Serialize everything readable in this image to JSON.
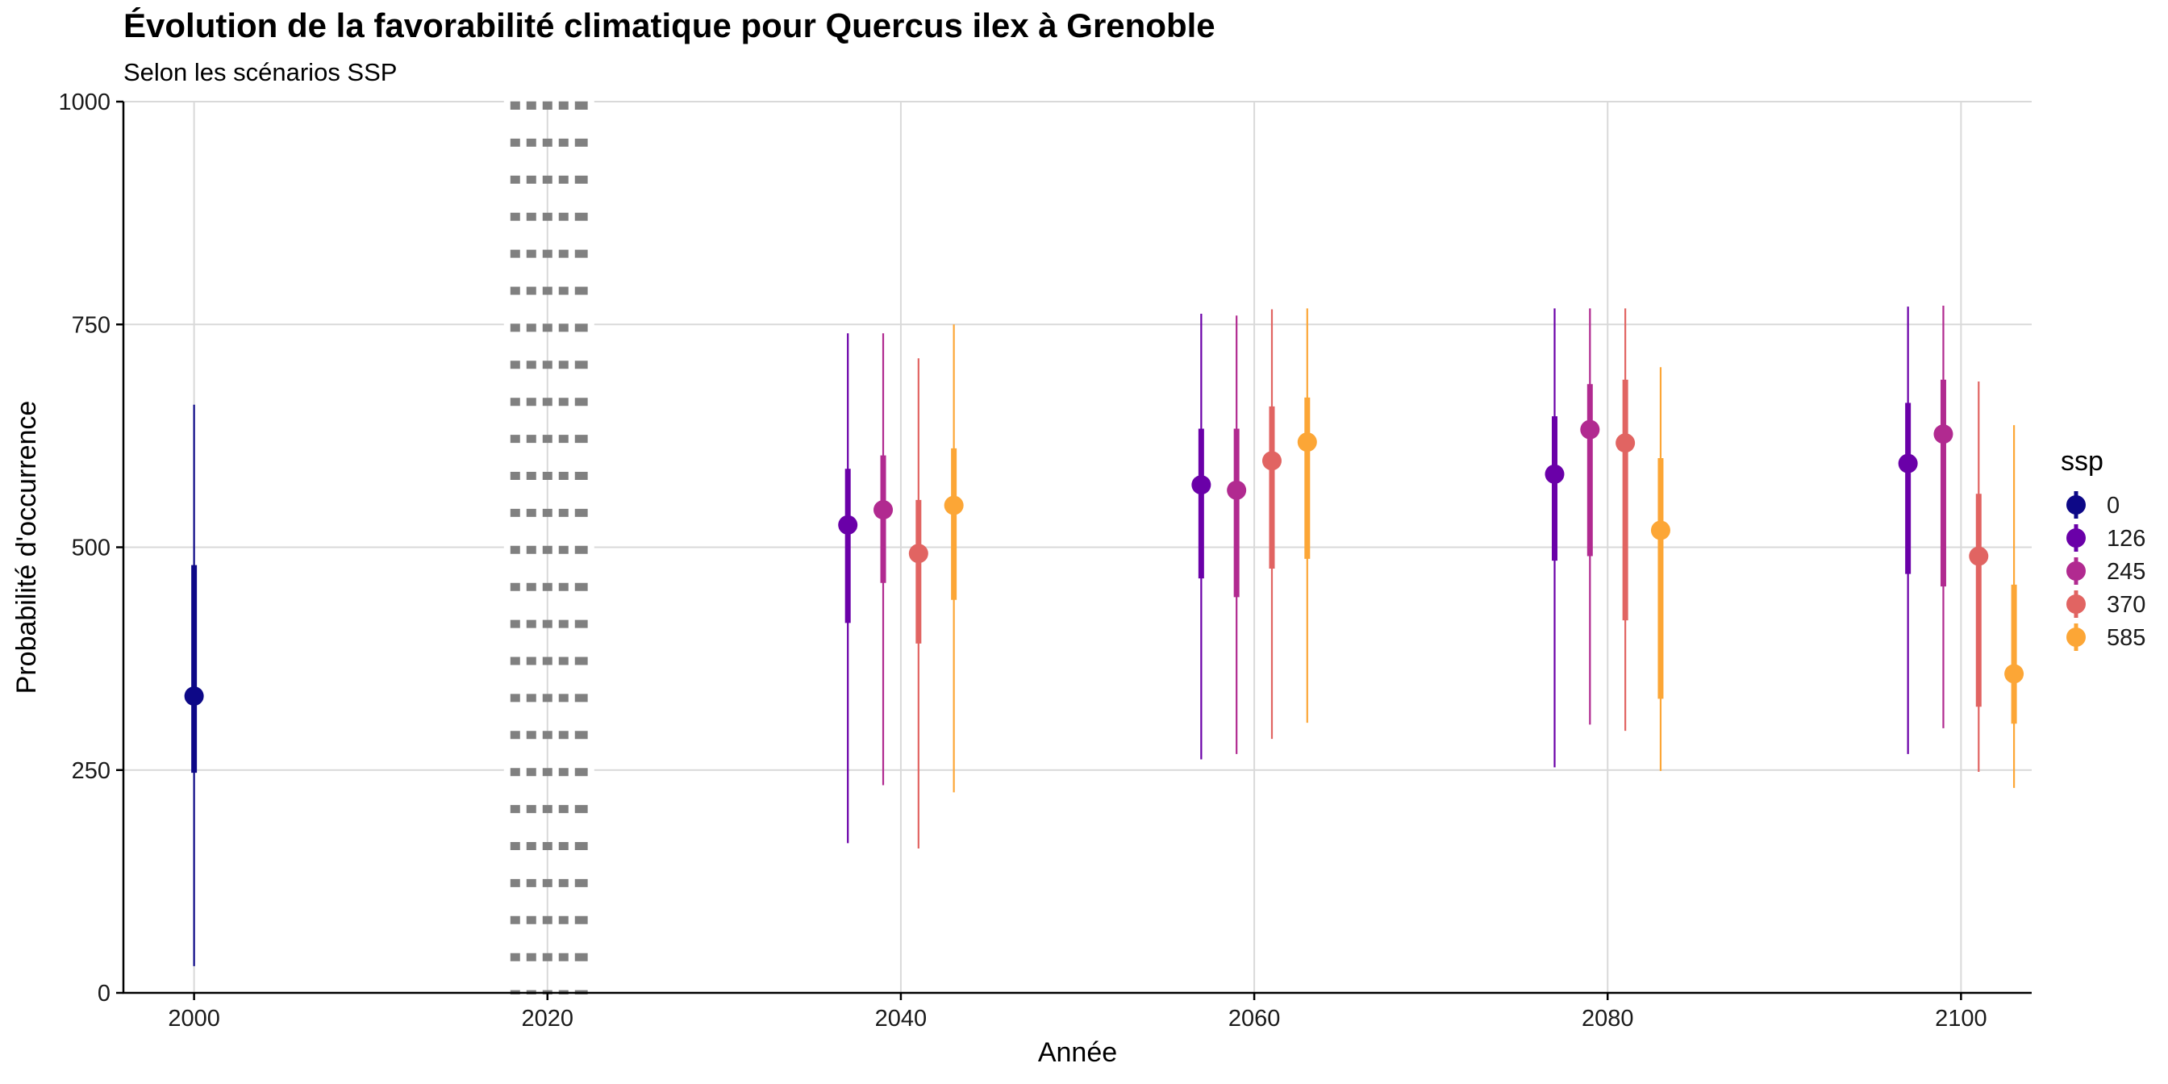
{
  "chart_data": {
    "type": "pointrange",
    "title": "Évolution de la favorabilité climatique pour Quercus ilex à Grenoble",
    "subtitle": "Selon les scénarios SSP",
    "xlabel": "Année",
    "ylabel": "Probabilité d'occurrence",
    "xlim": [
      1996,
      2104
    ],
    "ylim": [
      0,
      1000
    ],
    "x_ticks": [
      "2000",
      "2020",
      "2040",
      "2060",
      "2080",
      "2100"
    ],
    "y_ticks": [
      "0",
      "250",
      "500",
      "750",
      "1000"
    ],
    "grid": true,
    "reference_line": {
      "x": 2020,
      "style": "dotted",
      "color": "#808080"
    },
    "legend": {
      "title": "ssp",
      "placement": "right",
      "entries": [
        {
          "label": "0",
          "color": "#0d0887"
        },
        {
          "label": "126",
          "color": "#6a00a8"
        },
        {
          "label": "245",
          "color": "#b12a90"
        },
        {
          "label": "370",
          "color": "#e16462"
        },
        {
          "label": "585",
          "color": "#fca636"
        }
      ]
    },
    "series": [
      {
        "name": "0",
        "color": "#0d0887",
        "points": [
          {
            "x": 2000,
            "y": 333,
            "inner": [
              247,
              480
            ],
            "outer": [
              30,
              660
            ]
          }
        ]
      },
      {
        "name": "126",
        "color": "#6a00a8",
        "points": [
          {
            "x": 2037,
            "y": 525,
            "inner": [
              415,
              588
            ],
            "outer": [
              168,
              740
            ]
          },
          {
            "x": 2057,
            "y": 570,
            "inner": [
              465,
              633
            ],
            "outer": [
              262,
              762
            ]
          },
          {
            "x": 2077,
            "y": 582,
            "inner": [
              485,
              647
            ],
            "outer": [
              253,
              768
            ]
          },
          {
            "x": 2097,
            "y": 594,
            "inner": [
              470,
              662
            ],
            "outer": [
              268,
              770
            ]
          }
        ]
      },
      {
        "name": "245",
        "color": "#b12a90",
        "points": [
          {
            "x": 2039,
            "y": 542,
            "inner": [
              460,
              603
            ],
            "outer": [
              233,
              740
            ]
          },
          {
            "x": 2059,
            "y": 564,
            "inner": [
              444,
              633
            ],
            "outer": [
              268,
              760
            ]
          },
          {
            "x": 2079,
            "y": 632,
            "inner": [
              490,
              683
            ],
            "outer": [
              301,
              768
            ]
          },
          {
            "x": 2099,
            "y": 627,
            "inner": [
              456,
              688
            ],
            "outer": [
              297,
              771
            ]
          }
        ]
      },
      {
        "name": "370",
        "color": "#e16462",
        "points": [
          {
            "x": 2041,
            "y": 493,
            "inner": [
              392,
              553
            ],
            "outer": [
              162,
              712
            ]
          },
          {
            "x": 2061,
            "y": 597,
            "inner": [
              476,
              658
            ],
            "outer": [
              285,
              767
            ]
          },
          {
            "x": 2081,
            "y": 617,
            "inner": [
              418,
              688
            ],
            "outer": [
              294,
              768
            ]
          },
          {
            "x": 2101,
            "y": 490,
            "inner": [
              321,
              560
            ],
            "outer": [
              248,
              686
            ]
          }
        ]
      },
      {
        "name": "585",
        "color": "#fca636",
        "points": [
          {
            "x": 2043,
            "y": 547,
            "inner": [
              441,
              611
            ],
            "outer": [
              225,
              750
            ]
          },
          {
            "x": 2063,
            "y": 618,
            "inner": [
              487,
              668
            ],
            "outer": [
              303,
              768
            ]
          },
          {
            "x": 2083,
            "y": 519,
            "inner": [
              330,
              600
            ],
            "outer": [
              249,
              702
            ]
          },
          {
            "x": 2103,
            "y": 358,
            "inner": [
              302,
              458
            ],
            "outer": [
              230,
              637
            ]
          }
        ]
      }
    ]
  }
}
